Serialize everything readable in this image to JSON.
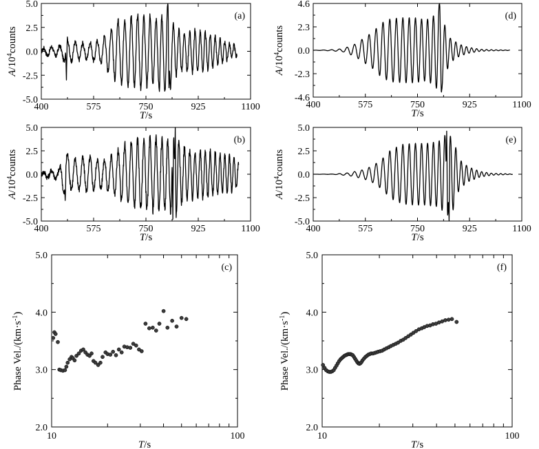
{
  "chart_data": [
    {
      "id": "a",
      "type": "line",
      "panel_label": "(a)",
      "xlabel_italic": "T",
      "xlabel_unit": "/s",
      "ylabel_italic": "A",
      "ylabel_rest": "/10",
      "ylabel_sup": "4",
      "ylabel_unit": "counts",
      "xlim": [
        400,
        1100
      ],
      "ylim": [
        -5.0,
        5.0
      ],
      "xticks": [
        "400",
        "575",
        "750",
        "925",
        "1100"
      ],
      "yticks": [
        "5.0",
        "2.5",
        "0.0",
        "-2.5",
        "-5.0"
      ],
      "ytick_values": [
        5.0,
        2.5,
        0.0,
        -2.5,
        -5.0
      ],
      "series": [
        {
          "name": "observed waveform",
          "t_start": 400,
          "t_end": 1055,
          "envelope": [
            [
              400,
              0.0
            ],
            [
              410,
              0.4
            ],
            [
              445,
              0.5
            ],
            [
              470,
              0.6
            ],
            [
              480,
              1.4
            ],
            [
              500,
              1.0
            ],
            [
              550,
              0.8
            ],
            [
              600,
              1.2
            ],
            [
              630,
              2.3
            ],
            [
              650,
              3.0
            ],
            [
              680,
              3.5
            ],
            [
              720,
              3.8
            ],
            [
              760,
              3.6
            ],
            [
              790,
              3.3
            ],
            [
              810,
              3.6
            ],
            [
              820,
              4.9
            ],
            [
              840,
              2.8
            ],
            [
              870,
              2.0
            ],
            [
              920,
              2.2
            ],
            [
              960,
              1.8
            ],
            [
              1000,
              1.2
            ],
            [
              1030,
              0.8
            ],
            [
              1055,
              0.5
            ]
          ],
          "spikes": [
            [
              484,
              -3.0
            ],
            [
              823,
              5.0
            ],
            [
              827,
              -4.2
            ],
            [
              795,
              -4.3
            ]
          ],
          "noise": 0.35
        }
      ]
    },
    {
      "id": "b",
      "type": "line",
      "panel_label": "(b)",
      "xlabel_italic": "T",
      "xlabel_unit": "/s",
      "ylabel_italic": "A",
      "ylabel_rest": "/10",
      "ylabel_sup": "4",
      "ylabel_unit": "counts",
      "xlim": [
        400,
        1100
      ],
      "ylim": [
        -5.0,
        5.0
      ],
      "xticks": [
        "400",
        "575",
        "750",
        "925",
        "1100"
      ],
      "yticks": [
        "5.0",
        "2.5",
        "0.0",
        "-2.5",
        "-5.0"
      ],
      "ytick_values": [
        5.0,
        2.5,
        0.0,
        -2.5,
        -5.0
      ],
      "series": [
        {
          "name": "observed waveform",
          "t_start": 400,
          "t_end": 1060,
          "envelope": [
            [
              400,
              0.0
            ],
            [
              410,
              0.3
            ],
            [
              460,
              0.5
            ],
            [
              480,
              2.6
            ],
            [
              500,
              1.5
            ],
            [
              560,
              1.8
            ],
            [
              600,
              1.5
            ],
            [
              640,
              2.0
            ],
            [
              680,
              3.2
            ],
            [
              720,
              3.6
            ],
            [
              780,
              3.8
            ],
            [
              820,
              3.5
            ],
            [
              850,
              4.5
            ],
            [
              870,
              3.0
            ],
            [
              900,
              2.6
            ],
            [
              960,
              2.4
            ],
            [
              1000,
              2.0
            ],
            [
              1040,
              1.8
            ],
            [
              1060,
              1.2
            ]
          ],
          "spikes": [
            [
              848,
              5.0
            ],
            [
              840,
              -4.8
            ],
            [
              480,
              -2.8
            ]
          ],
          "noise": 0.45
        }
      ]
    },
    {
      "id": "c",
      "type": "scatter",
      "panel_label": "(c)",
      "xlabel_italic": "T",
      "xlabel_unit": "/s",
      "ylabel": "Phase Vel./(km·s",
      "ylabel_sup": "-1",
      "ylabel_close": ")",
      "xscale": "log",
      "xlim": [
        10,
        100
      ],
      "ylim": [
        2.0,
        5.0
      ],
      "xticks": [
        "10",
        "100"
      ],
      "xtick_values": [
        10,
        100
      ],
      "yticks": [
        "5.0",
        "4.0",
        "3.0",
        "2.0"
      ],
      "ytick_values": [
        5.0,
        4.0,
        3.0,
        2.0
      ],
      "x": [
        10.2,
        10.35,
        10.5,
        10.8,
        11.0,
        11.2,
        11.5,
        11.8,
        12.0,
        12.2,
        12.5,
        12.8,
        13.0,
        13.3,
        13.6,
        14.0,
        14.4,
        14.8,
        15.2,
        15.6,
        16.0,
        16.4,
        16.8,
        17.2,
        17.8,
        18.3,
        18.8,
        19.5,
        20.0,
        20.7,
        21.4,
        22.2,
        23.0,
        23.8,
        24.6,
        25.5,
        26.5,
        27.5,
        28.5,
        29.5,
        30.5,
        32.0,
        33.5,
        35.0,
        36.5,
        38.0,
        40.0,
        42.0,
        44.5,
        47.0,
        50.0,
        53.0
      ],
      "y": [
        3.55,
        3.65,
        3.62,
        3.48,
        3.0,
        2.99,
        2.98,
        2.99,
        3.05,
        3.12,
        3.18,
        3.22,
        3.2,
        3.16,
        3.24,
        3.28,
        3.33,
        3.35,
        3.3,
        3.26,
        3.24,
        3.28,
        3.15,
        3.12,
        3.08,
        3.12,
        3.22,
        3.3,
        3.27,
        3.26,
        3.31,
        3.25,
        3.35,
        3.3,
        3.4,
        3.39,
        3.38,
        3.45,
        3.42,
        3.35,
        3.32,
        3.8,
        3.72,
        3.73,
        3.68,
        3.8,
        4.02,
        3.73,
        3.85,
        3.75,
        3.9,
        3.88
      ]
    },
    {
      "id": "d",
      "type": "line",
      "panel_label": "(d)",
      "xlabel_italic": "T",
      "xlabel_unit": "/s",
      "ylabel_italic": "A",
      "ylabel_rest": "/10",
      "ylabel_sup": "4",
      "ylabel_unit": "counts",
      "xlim": [
        400,
        1100
      ],
      "ylim": [
        -4.6,
        4.6
      ],
      "xticks": [
        "400",
        "575",
        "750",
        "925",
        "1100"
      ],
      "yticks": [
        "4.6",
        "2.3",
        "0.0",
        "-2.3",
        "-4.6"
      ],
      "ytick_values": [
        4.6,
        2.3,
        0.0,
        -2.3,
        -4.6
      ],
      "series": [
        {
          "name": "synthetic waveform",
          "t_start": 400,
          "t_end": 1060,
          "envelope": [
            [
              400,
              0.0
            ],
            [
              460,
              0.05
            ],
            [
              500,
              0.15
            ],
            [
              540,
              0.6
            ],
            [
              570,
              1.2
            ],
            [
              600,
              1.8
            ],
            [
              630,
              2.7
            ],
            [
              660,
              3.1
            ],
            [
              700,
              3.2
            ],
            [
              740,
              3.2
            ],
            [
              780,
              3.0
            ],
            [
              810,
              3.5
            ],
            [
              825,
              4.6
            ],
            [
              840,
              2.6
            ],
            [
              860,
              1.2
            ],
            [
              890,
              0.6
            ],
            [
              920,
              0.3
            ],
            [
              960,
              0.1
            ],
            [
              1000,
              0.05
            ],
            [
              1060,
              0.02
            ]
          ],
          "spikes": [
            [
              824,
              4.6
            ],
            [
              830,
              -4.3
            ]
          ],
          "noise": 0.0
        }
      ]
    },
    {
      "id": "e",
      "type": "line",
      "panel_label": "(e)",
      "xlabel_italic": "T",
      "xlabel_unit": "/s",
      "ylabel_italic": "A",
      "ylabel_rest": "/10",
      "ylabel_sup": "4",
      "ylabel_unit": "counts",
      "xlim": [
        400,
        1100
      ],
      "ylim": [
        -5.0,
        5.0
      ],
      "xticks": [
        "400",
        "575",
        "750",
        "925",
        "1100"
      ],
      "yticks": [
        "5.0",
        "2.5",
        "0.0",
        "-2.5",
        "-5.0"
      ],
      "ytick_values": [
        5.0,
        2.5,
        0.0,
        -2.5,
        -5.0
      ],
      "series": [
        {
          "name": "synthetic waveform",
          "t_start": 400,
          "t_end": 1070,
          "envelope": [
            [
              400,
              0.0
            ],
            [
              470,
              0.02
            ],
            [
              520,
              0.15
            ],
            [
              570,
              0.5
            ],
            [
              600,
              0.9
            ],
            [
              630,
              1.6
            ],
            [
              660,
              2.6
            ],
            [
              700,
              3.2
            ],
            [
              740,
              3.3
            ],
            [
              780,
              3.3
            ],
            [
              820,
              3.5
            ],
            [
              850,
              4.4
            ],
            [
              870,
              3.8
            ],
            [
              890,
              1.6
            ],
            [
              920,
              0.8
            ],
            [
              960,
              0.3
            ],
            [
              1000,
              0.1
            ],
            [
              1070,
              0.02
            ]
          ],
          "spikes": [
            [
              848,
              4.6
            ],
            [
              856,
              -5.0
            ]
          ],
          "noise": 0.0
        }
      ]
    },
    {
      "id": "f",
      "type": "scatter",
      "panel_label": "(f)",
      "xlabel_italic": "T",
      "xlabel_unit": "/s",
      "ylabel": "Phase Vel./(km·s",
      "ylabel_sup": "-1",
      "ylabel_close": ")",
      "xscale": "log",
      "xlim": [
        10,
        100
      ],
      "ylim": [
        2.0,
        5.0
      ],
      "xticks": [
        "10",
        "100"
      ],
      "xtick_values": [
        10,
        100
      ],
      "yticks": [
        "5.0",
        "4.0",
        "3.0",
        "2.0"
      ],
      "ytick_values": [
        5.0,
        4.0,
        3.0,
        2.0
      ],
      "x": [
        10.1,
        10.3,
        10.5,
        10.7,
        10.9,
        11.1,
        11.3,
        11.5,
        11.7,
        11.9,
        12.1,
        12.3,
        12.5,
        12.7,
        12.9,
        13.1,
        13.3,
        13.5,
        13.7,
        13.9,
        14.1,
        14.3,
        14.5,
        14.7,
        14.9,
        15.1,
        15.3,
        15.5,
        15.7,
        15.9,
        16.1,
        16.3,
        16.6,
        16.9,
        17.2,
        17.5,
        17.8,
        18.1,
        18.5,
        18.9,
        19.3,
        19.7,
        20.2,
        20.7,
        21.2,
        21.8,
        22.4,
        23.0,
        23.7,
        24.4,
        25.1,
        25.9,
        26.7,
        27.5,
        28.4,
        29.3,
        30.2,
        31.2,
        32.3,
        33.4,
        34.5,
        35.7,
        37.0,
        38.3,
        39.7,
        41.2,
        42.8,
        44.5,
        46.3,
        48.2,
        51.0
      ],
      "y": [
        3.08,
        3.03,
        2.99,
        2.97,
        2.96,
        2.96,
        2.97,
        2.99,
        3.03,
        3.07,
        3.11,
        3.15,
        3.18,
        3.2,
        3.22,
        3.24,
        3.25,
        3.26,
        3.27,
        3.27,
        3.27,
        3.26,
        3.25,
        3.22,
        3.19,
        3.16,
        3.13,
        3.11,
        3.1,
        3.11,
        3.13,
        3.16,
        3.19,
        3.22,
        3.24,
        3.26,
        3.27,
        3.28,
        3.28,
        3.29,
        3.3,
        3.31,
        3.32,
        3.33,
        3.35,
        3.37,
        3.39,
        3.41,
        3.43,
        3.45,
        3.47,
        3.5,
        3.52,
        3.55,
        3.58,
        3.61,
        3.64,
        3.67,
        3.7,
        3.72,
        3.74,
        3.76,
        3.77,
        3.79,
        3.8,
        3.82,
        3.84,
        3.86,
        3.87,
        3.88,
        3.83
      ]
    }
  ]
}
